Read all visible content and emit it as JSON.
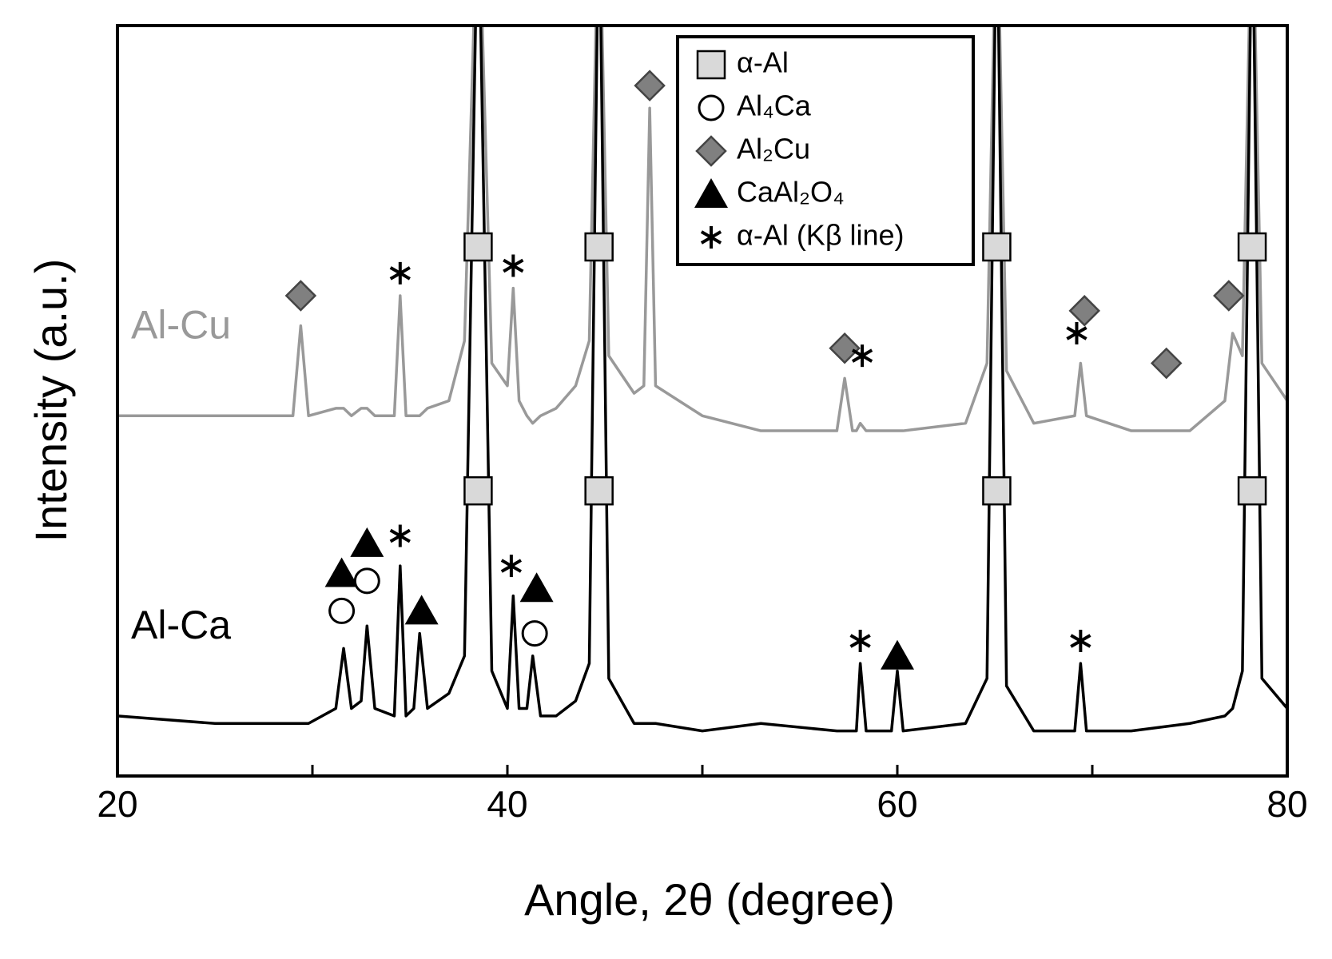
{
  "chart_data": {
    "type": "line",
    "xlabel": "Angle, 2θ (degree)",
    "ylabel": "Intensity (a.u.)",
    "xlim": [
      20,
      80
    ],
    "xticks": [
      20,
      40,
      60,
      80
    ],
    "xminorticks": [
      30,
      50,
      70
    ],
    "ylim": [
      0,
      100
    ],
    "x": [
      20,
      25,
      29,
      29.4,
      29.8,
      31.2,
      31.6,
      32.0,
      32.5,
      32.8,
      33.2,
      34.2,
      34.5,
      34.8,
      35.2,
      35.5,
      35.9,
      37.0,
      37.8,
      38.5,
      39.2,
      40.0,
      40.3,
      40.6,
      41.0,
      41.3,
      41.7,
      42.5,
      43.5,
      44.2,
      44.7,
      45.2,
      46.5,
      47.0,
      47.3,
      47.6,
      50,
      53,
      56.9,
      57.3,
      57.7,
      57.9,
      58.1,
      58.4,
      59.7,
      60.0,
      60.3,
      63.5,
      64.6,
      65.1,
      65.6,
      67,
      69.1,
      69.4,
      69.7,
      72,
      75,
      76.8,
      77.2,
      77.7,
      78.2,
      78.7,
      80
    ],
    "series": [
      {
        "name": "Al-Cu",
        "color": "#999999",
        "values": [
          48,
          48,
          48,
          60,
          48,
          49,
          49,
          48,
          49,
          49,
          48,
          48,
          64,
          48,
          48,
          48,
          49,
          50,
          58,
          120,
          55,
          52,
          65,
          50,
          48,
          47,
          48,
          49,
          52,
          58,
          120,
          56,
          51,
          52,
          89,
          52,
          48,
          46,
          46,
          53,
          46,
          46,
          47,
          46,
          46,
          46,
          46,
          47,
          55,
          120,
          54,
          47,
          48,
          55,
          48,
          46,
          46,
          50,
          59,
          56,
          120,
          55,
          50
        ]
      },
      {
        "name": "Al-Ca",
        "color": "#000000",
        "values": [
          8,
          7,
          7,
          7,
          7,
          9,
          17,
          9,
          10,
          20,
          9,
          8,
          28,
          8,
          9,
          19,
          9,
          11,
          16,
          120,
          14,
          9,
          24,
          9,
          9,
          16,
          8,
          8,
          10,
          15,
          120,
          13,
          7,
          7,
          7,
          7,
          6,
          7,
          6,
          6,
          6,
          6,
          15,
          6,
          6,
          14,
          6,
          7,
          13,
          120,
          12,
          6,
          6,
          15,
          6,
          6,
          7,
          8,
          9,
          14,
          120,
          13,
          9
        ]
      }
    ],
    "phases": [
      {
        "name": "α-Al",
        "symbol": "square",
        "color": "#d9d9d9"
      },
      {
        "name": "Al₄Ca",
        "symbol": "circle",
        "color": "#ffffff"
      },
      {
        "name": "Al₂Cu",
        "symbol": "diamond",
        "color": "#808080"
      },
      {
        "name": "CaAl₂O₄",
        "symbol": "triangle",
        "color": "#000000"
      },
      {
        "name": "α-Al (Kβ line)",
        "symbol": "asterisk",
        "color": "#000000"
      }
    ],
    "markers": [
      {
        "phase": 0,
        "x": 38.5,
        "y": 70.5
      },
      {
        "phase": 0,
        "x": 44.7,
        "y": 70.5
      },
      {
        "phase": 0,
        "x": 65.1,
        "y": 70.5
      },
      {
        "phase": 0,
        "x": 78.2,
        "y": 70.5
      },
      {
        "phase": 2,
        "x": 29.4,
        "y": 64
      },
      {
        "phase": 2,
        "x": 47.3,
        "y": 92
      },
      {
        "phase": 2,
        "x": 57.3,
        "y": 57
      },
      {
        "phase": 2,
        "x": 69.6,
        "y": 62
      },
      {
        "phase": 2,
        "x": 73.8,
        "y": 55
      },
      {
        "phase": 2,
        "x": 77.0,
        "y": 64
      },
      {
        "phase": 4,
        "x": 34.5,
        "y": 67
      },
      {
        "phase": 4,
        "x": 40.3,
        "y": 68
      },
      {
        "phase": 4,
        "x": 58.2,
        "y": 56
      },
      {
        "phase": 4,
        "x": 69.2,
        "y": 59
      },
      {
        "phase": 0,
        "x": 38.5,
        "y": 38
      },
      {
        "phase": 0,
        "x": 44.7,
        "y": 38
      },
      {
        "phase": 0,
        "x": 65.1,
        "y": 38
      },
      {
        "phase": 0,
        "x": 78.2,
        "y": 38
      },
      {
        "phase": 3,
        "x": 31.5,
        "y": 27
      },
      {
        "phase": 3,
        "x": 32.8,
        "y": 31
      },
      {
        "phase": 3,
        "x": 35.6,
        "y": 22
      },
      {
        "phase": 3,
        "x": 41.5,
        "y": 25
      },
      {
        "phase": 3,
        "x": 60.0,
        "y": 16
      },
      {
        "phase": 1,
        "x": 31.5,
        "y": 22
      },
      {
        "phase": 1,
        "x": 32.8,
        "y": 26
      },
      {
        "phase": 1,
        "x": 41.4,
        "y": 19
      },
      {
        "phase": 4,
        "x": 34.5,
        "y": 32
      },
      {
        "phase": 4,
        "x": 40.2,
        "y": 28
      },
      {
        "phase": 4,
        "x": 58.1,
        "y": 18
      },
      {
        "phase": 4,
        "x": 69.4,
        "y": 18
      }
    ]
  }
}
